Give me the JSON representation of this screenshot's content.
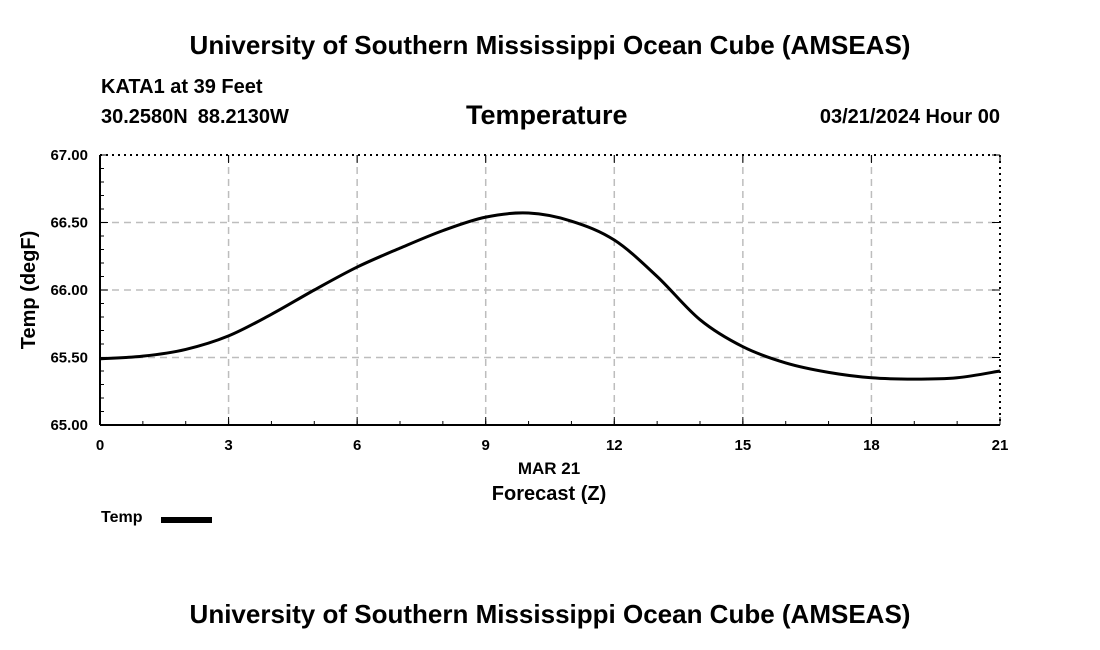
{
  "header": {
    "institution_top": "University of Southern Mississippi Ocean Cube (AMSEAS)",
    "institution_bottom": "University of Southern Mississippi Ocean Cube (AMSEAS)",
    "station": "KATA1 at 39 Feet",
    "latitude": "30.2580N",
    "longitude": "88.2130W",
    "datetime": "03/21/2024 Hour 00"
  },
  "legend": {
    "label": "Temp"
  },
  "chart_data": {
    "type": "line",
    "title": "Temperature",
    "xlabel": "Forecast (Z)",
    "xlabel_date": "MAR 21",
    "ylabel": "Temp (degF)",
    "xlim": [
      0,
      21
    ],
    "ylim": [
      65.0,
      67.0
    ],
    "x_ticks": [
      0,
      3,
      6,
      9,
      12,
      15,
      18,
      21
    ],
    "x_tick_labels": [
      "0",
      "3",
      "6",
      "9",
      "12",
      "15",
      "18",
      "21"
    ],
    "y_ticks": [
      65.0,
      65.5,
      66.0,
      66.5,
      67.0
    ],
    "y_tick_labels": [
      "65.00",
      "65.50",
      "66.00",
      "66.50",
      "67.00"
    ],
    "grid": true,
    "legend_position": "bottom-left",
    "series": [
      {
        "name": "Temp",
        "color": "#000000",
        "x": [
          0,
          1,
          2,
          3,
          4,
          5,
          6,
          7,
          8,
          9,
          10,
          11,
          12,
          13,
          14,
          15,
          16,
          17,
          18,
          19,
          20,
          21
        ],
        "values": [
          65.49,
          65.51,
          65.56,
          65.66,
          65.82,
          66.0,
          66.17,
          66.31,
          66.44,
          66.54,
          66.57,
          66.51,
          66.37,
          66.1,
          65.78,
          65.58,
          65.46,
          65.39,
          65.35,
          65.34,
          65.35,
          65.4
        ]
      }
    ]
  }
}
